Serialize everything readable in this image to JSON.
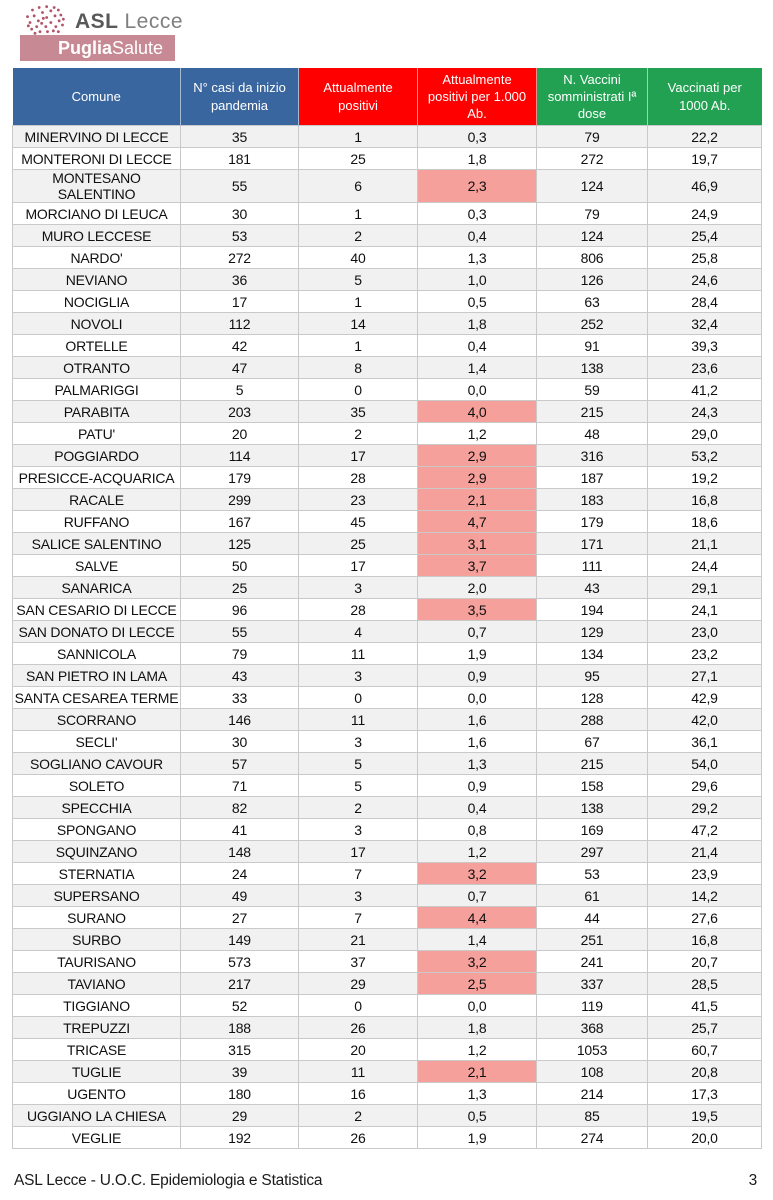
{
  "colors": {
    "header-blue": "#3A66A0",
    "header-red": "#FE0000",
    "header-green": "#21A151",
    "highlight-pink": "#F5A09B",
    "stripe-gray": "#F1F1F2",
    "brand-rose": "#C78994",
    "logo-tree": "#B05568"
  },
  "logo": {
    "org_bold": "ASL",
    "org_rest": "Lecce",
    "brand_bold": "Puglia",
    "brand_rest": "Salute"
  },
  "footer": {
    "text": "ASL Lecce - U.O.C. Epidemiologia e Statistica",
    "page_number": "3"
  },
  "table": {
    "columns": [
      {
        "label": "Comune",
        "color": "blue"
      },
      {
        "label": "N° casi da inizio pandemia",
        "color": "blue"
      },
      {
        "label": "Attualmente positivi",
        "color": "red"
      },
      {
        "label": "Attualmente positivi per 1.000 Ab.",
        "color": "red"
      },
      {
        "label": "N. Vaccini somministrati Iª dose",
        "color": "green"
      },
      {
        "label": "Vaccinati per 1000 Ab.",
        "color": "green"
      }
    ],
    "rows": [
      {
        "comune": "MINERVINO DI LECCE",
        "casi": "35",
        "positivi": "1",
        "per1000": "0,3",
        "vaccini": "79",
        "vacc1000": "22,2",
        "highlight": false
      },
      {
        "comune": "MONTERONI DI LECCE",
        "casi": "181",
        "positivi": "25",
        "per1000": "1,8",
        "vaccini": "272",
        "vacc1000": "19,7",
        "highlight": false
      },
      {
        "comune": "MONTESANO SALENTINO",
        "casi": "55",
        "positivi": "6",
        "per1000": "2,3",
        "vaccini": "124",
        "vacc1000": "46,9",
        "highlight": true
      },
      {
        "comune": "MORCIANO DI LEUCA",
        "casi": "30",
        "positivi": "1",
        "per1000": "0,3",
        "vaccini": "79",
        "vacc1000": "24,9",
        "highlight": false
      },
      {
        "comune": "MURO LECCESE",
        "casi": "53",
        "positivi": "2",
        "per1000": "0,4",
        "vaccini": "124",
        "vacc1000": "25,4",
        "highlight": false
      },
      {
        "comune": "NARDO'",
        "casi": "272",
        "positivi": "40",
        "per1000": "1,3",
        "vaccini": "806",
        "vacc1000": "25,8",
        "highlight": false
      },
      {
        "comune": "NEVIANO",
        "casi": "36",
        "positivi": "5",
        "per1000": "1,0",
        "vaccini": "126",
        "vacc1000": "24,6",
        "highlight": false
      },
      {
        "comune": "NOCIGLIA",
        "casi": "17",
        "positivi": "1",
        "per1000": "0,5",
        "vaccini": "63",
        "vacc1000": "28,4",
        "highlight": false
      },
      {
        "comune": "NOVOLI",
        "casi": "112",
        "positivi": "14",
        "per1000": "1,8",
        "vaccini": "252",
        "vacc1000": "32,4",
        "highlight": false
      },
      {
        "comune": "ORTELLE",
        "casi": "42",
        "positivi": "1",
        "per1000": "0,4",
        "vaccini": "91",
        "vacc1000": "39,3",
        "highlight": false
      },
      {
        "comune": "OTRANTO",
        "casi": "47",
        "positivi": "8",
        "per1000": "1,4",
        "vaccini": "138",
        "vacc1000": "23,6",
        "highlight": false
      },
      {
        "comune": "PALMARIGGI",
        "casi": "5",
        "positivi": "0",
        "per1000": "0,0",
        "vaccini": "59",
        "vacc1000": "41,2",
        "highlight": false
      },
      {
        "comune": "PARABITA",
        "casi": "203",
        "positivi": "35",
        "per1000": "4,0",
        "vaccini": "215",
        "vacc1000": "24,3",
        "highlight": true
      },
      {
        "comune": "PATU'",
        "casi": "20",
        "positivi": "2",
        "per1000": "1,2",
        "vaccini": "48",
        "vacc1000": "29,0",
        "highlight": false
      },
      {
        "comune": "POGGIARDO",
        "casi": "114",
        "positivi": "17",
        "per1000": "2,9",
        "vaccini": "316",
        "vacc1000": "53,2",
        "highlight": true
      },
      {
        "comune": "PRESICCE-ACQUARICA",
        "casi": "179",
        "positivi": "28",
        "per1000": "2,9",
        "vaccini": "187",
        "vacc1000": "19,2",
        "highlight": true
      },
      {
        "comune": "RACALE",
        "casi": "299",
        "positivi": "23",
        "per1000": "2,1",
        "vaccini": "183",
        "vacc1000": "16,8",
        "highlight": true
      },
      {
        "comune": "RUFFANO",
        "casi": "167",
        "positivi": "45",
        "per1000": "4,7",
        "vaccini": "179",
        "vacc1000": "18,6",
        "highlight": true
      },
      {
        "comune": "SALICE SALENTINO",
        "casi": "125",
        "positivi": "25",
        "per1000": "3,1",
        "vaccini": "171",
        "vacc1000": "21,1",
        "highlight": true
      },
      {
        "comune": "SALVE",
        "casi": "50",
        "positivi": "17",
        "per1000": "3,7",
        "vaccini": "111",
        "vacc1000": "24,4",
        "highlight": true
      },
      {
        "comune": "SANARICA",
        "casi": "25",
        "positivi": "3",
        "per1000": "2,0",
        "vaccini": "43",
        "vacc1000": "29,1",
        "highlight": false
      },
      {
        "comune": "SAN CESARIO DI LECCE",
        "casi": "96",
        "positivi": "28",
        "per1000": "3,5",
        "vaccini": "194",
        "vacc1000": "24,1",
        "highlight": true
      },
      {
        "comune": "SAN DONATO DI LECCE",
        "casi": "55",
        "positivi": "4",
        "per1000": "0,7",
        "vaccini": "129",
        "vacc1000": "23,0",
        "highlight": false
      },
      {
        "comune": "SANNICOLA",
        "casi": "79",
        "positivi": "11",
        "per1000": "1,9",
        "vaccini": "134",
        "vacc1000": "23,2",
        "highlight": false
      },
      {
        "comune": "SAN PIETRO IN LAMA",
        "casi": "43",
        "positivi": "3",
        "per1000": "0,9",
        "vaccini": "95",
        "vacc1000": "27,1",
        "highlight": false
      },
      {
        "comune": "SANTA CESAREA TERME",
        "casi": "33",
        "positivi": "0",
        "per1000": "0,0",
        "vaccini": "128",
        "vacc1000": "42,9",
        "highlight": false
      },
      {
        "comune": "SCORRANO",
        "casi": "146",
        "positivi": "11",
        "per1000": "1,6",
        "vaccini": "288",
        "vacc1000": "42,0",
        "highlight": false
      },
      {
        "comune": "SECLI'",
        "casi": "30",
        "positivi": "3",
        "per1000": "1,6",
        "vaccini": "67",
        "vacc1000": "36,1",
        "highlight": false
      },
      {
        "comune": "SOGLIANO CAVOUR",
        "casi": "57",
        "positivi": "5",
        "per1000": "1,3",
        "vaccini": "215",
        "vacc1000": "54,0",
        "highlight": false
      },
      {
        "comune": "SOLETO",
        "casi": "71",
        "positivi": "5",
        "per1000": "0,9",
        "vaccini": "158",
        "vacc1000": "29,6",
        "highlight": false
      },
      {
        "comune": "SPECCHIA",
        "casi": "82",
        "positivi": "2",
        "per1000": "0,4",
        "vaccini": "138",
        "vacc1000": "29,2",
        "highlight": false
      },
      {
        "comune": "SPONGANO",
        "casi": "41",
        "positivi": "3",
        "per1000": "0,8",
        "vaccini": "169",
        "vacc1000": "47,2",
        "highlight": false
      },
      {
        "comune": "SQUINZANO",
        "casi": "148",
        "positivi": "17",
        "per1000": "1,2",
        "vaccini": "297",
        "vacc1000": "21,4",
        "highlight": false
      },
      {
        "comune": "STERNATIA",
        "casi": "24",
        "positivi": "7",
        "per1000": "3,2",
        "vaccini": "53",
        "vacc1000": "23,9",
        "highlight": true
      },
      {
        "comune": "SUPERSANO",
        "casi": "49",
        "positivi": "3",
        "per1000": "0,7",
        "vaccini": "61",
        "vacc1000": "14,2",
        "highlight": false
      },
      {
        "comune": "SURANO",
        "casi": "27",
        "positivi": "7",
        "per1000": "4,4",
        "vaccini": "44",
        "vacc1000": "27,6",
        "highlight": true
      },
      {
        "comune": "SURBO",
        "casi": "149",
        "positivi": "21",
        "per1000": "1,4",
        "vaccini": "251",
        "vacc1000": "16,8",
        "highlight": false
      },
      {
        "comune": "TAURISANO",
        "casi": "573",
        "positivi": "37",
        "per1000": "3,2",
        "vaccini": "241",
        "vacc1000": "20,7",
        "highlight": true
      },
      {
        "comune": "TAVIANO",
        "casi": "217",
        "positivi": "29",
        "per1000": "2,5",
        "vaccini": "337",
        "vacc1000": "28,5",
        "highlight": true
      },
      {
        "comune": "TIGGIANO",
        "casi": "52",
        "positivi": "0",
        "per1000": "0,0",
        "vaccini": "119",
        "vacc1000": "41,5",
        "highlight": false
      },
      {
        "comune": "TREPUZZI",
        "casi": "188",
        "positivi": "26",
        "per1000": "1,8",
        "vaccini": "368",
        "vacc1000": "25,7",
        "highlight": false
      },
      {
        "comune": "TRICASE",
        "casi": "315",
        "positivi": "20",
        "per1000": "1,2",
        "vaccini": "1053",
        "vacc1000": "60,7",
        "highlight": false
      },
      {
        "comune": "TUGLIE",
        "casi": "39",
        "positivi": "11",
        "per1000": "2,1",
        "vaccini": "108",
        "vacc1000": "20,8",
        "highlight": true
      },
      {
        "comune": "UGENTO",
        "casi": "180",
        "positivi": "16",
        "per1000": "1,3",
        "vaccini": "214",
        "vacc1000": "17,3",
        "highlight": false
      },
      {
        "comune": "UGGIANO LA CHIESA",
        "casi": "29",
        "positivi": "2",
        "per1000": "0,5",
        "vaccini": "85",
        "vacc1000": "19,5",
        "highlight": false
      },
      {
        "comune": "VEGLIE",
        "casi": "192",
        "positivi": "26",
        "per1000": "1,9",
        "vaccini": "274",
        "vacc1000": "20,0",
        "highlight": false
      }
    ]
  }
}
